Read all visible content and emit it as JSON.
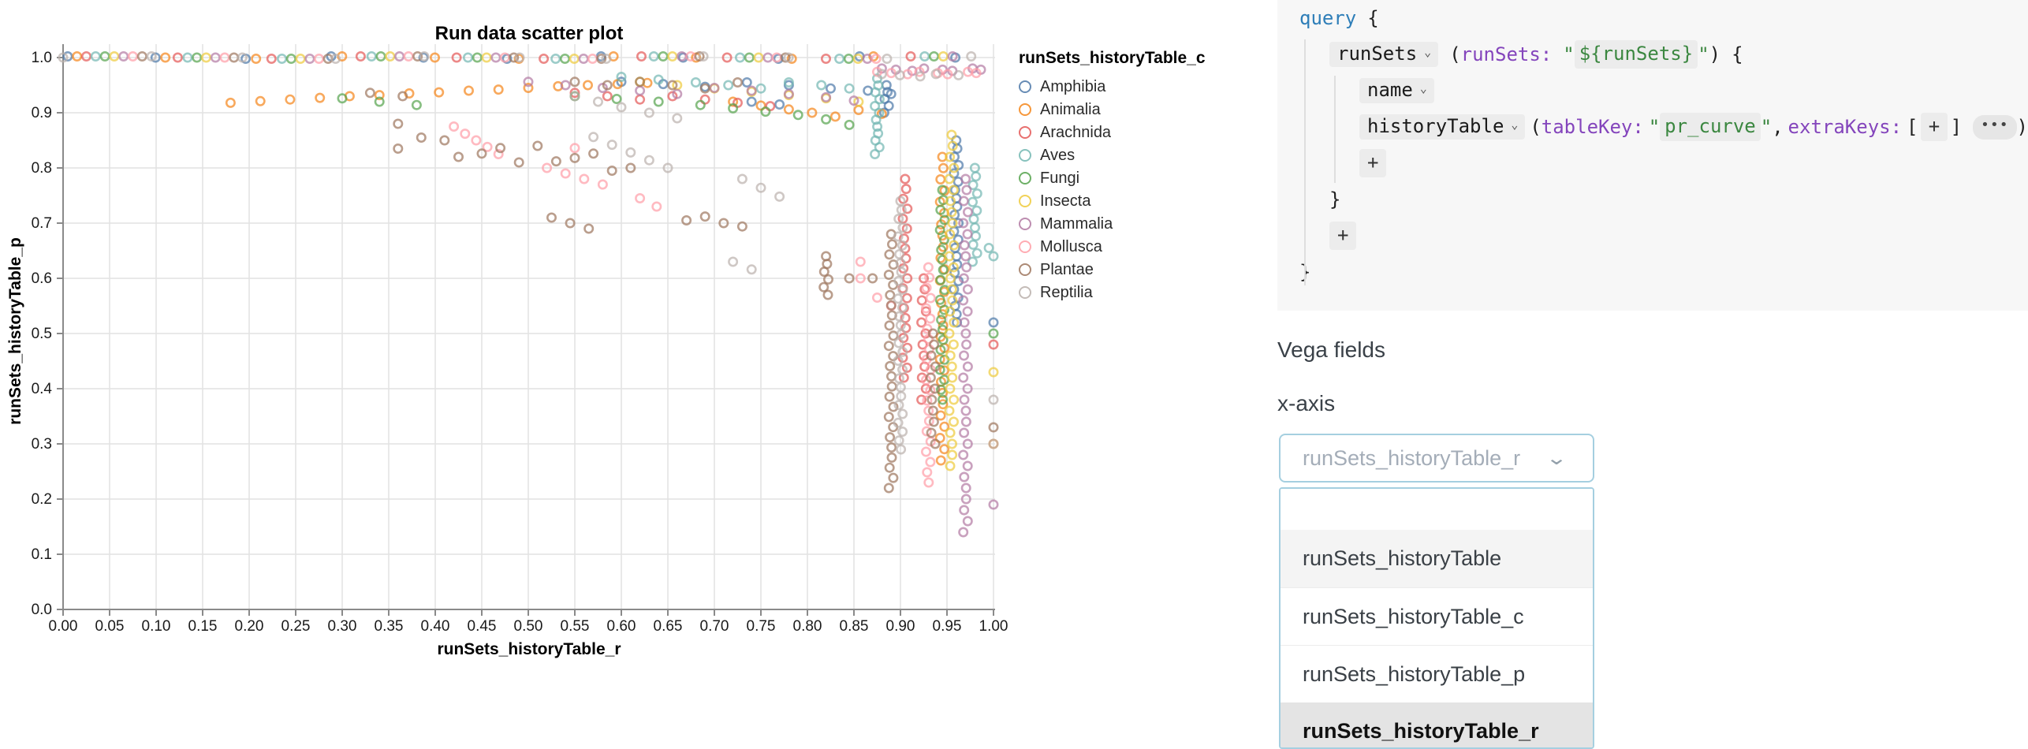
{
  "chart_data": {
    "type": "scatter",
    "title": "Run data scatter plot",
    "xlabel": "runSets_historyTable_r",
    "ylabel": "runSets_historyTable_p",
    "xlim": [
      0.0,
      1.0
    ],
    "ylim": [
      0.0,
      1.0
    ],
    "grid": true,
    "legend_title": "runSets_historyTable_c",
    "legend_position": "right",
    "x_ticks": [
      "0.00",
      "0.05",
      "0.10",
      "0.15",
      "0.20",
      "0.25",
      "0.30",
      "0.35",
      "0.40",
      "0.45",
      "0.50",
      "0.55",
      "0.60",
      "0.65",
      "0.70",
      "0.75",
      "0.80",
      "0.85",
      "0.90",
      "0.95",
      "1.00"
    ],
    "y_ticks": [
      "0.0",
      "0.1",
      "0.2",
      "0.3",
      "0.4",
      "0.5",
      "0.6",
      "0.7",
      "0.8",
      "0.9",
      "1.0"
    ],
    "marker": {
      "shape": "open-circle",
      "radius": 5.2,
      "stroke_width": 2.6,
      "opacity": 0.7
    },
    "series": [
      {
        "name": "Amphibia",
        "color": "#4c78a8",
        "rows": [
          {
            "p": 1.0,
            "r_from": 0.005,
            "r_to": 0.955,
            "n": 11
          }
        ],
        "points": [
          [
            0.6,
            0.956
          ],
          [
            0.645,
            0.952
          ],
          [
            0.69,
            0.947
          ],
          [
            0.735,
            0.955
          ],
          [
            0.78,
            0.95
          ],
          [
            0.825,
            0.944
          ],
          [
            0.865,
            0.94
          ],
          [
            0.89,
            0.934
          ],
          [
            0.74,
            0.92
          ],
          [
            0.77,
            0.915
          ],
          [
            1.0,
            0.52
          ]
        ],
        "streaks": [
          {
            "r": 0.96,
            "p_from": 0.85,
            "p_to": 0.52,
            "n": 23
          },
          {
            "r": 0.885,
            "p_from": 0.95,
            "p_to": 0.9,
            "n": 5
          }
        ]
      },
      {
        "name": "Animalia",
        "color": "#f58518",
        "rows": [
          {
            "p": 1.0,
            "r_from": 0.015,
            "r_to": 0.875,
            "n": 10
          }
        ],
        "points": [
          [
            0.18,
            0.918
          ],
          [
            0.212,
            0.921
          ],
          [
            0.244,
            0.924
          ],
          [
            0.276,
            0.927
          ],
          [
            0.308,
            0.93
          ],
          [
            0.34,
            0.932
          ],
          [
            0.372,
            0.935
          ],
          [
            0.404,
            0.937
          ],
          [
            0.436,
            0.94
          ],
          [
            0.468,
            0.942
          ],
          [
            0.5,
            0.945
          ],
          [
            0.532,
            0.948
          ],
          [
            0.564,
            0.95
          ],
          [
            0.596,
            0.952
          ],
          [
            0.628,
            0.954
          ],
          [
            0.72,
            0.92
          ],
          [
            0.75,
            0.913
          ],
          [
            0.78,
            0.906
          ],
          [
            0.805,
            0.9
          ],
          [
            0.83,
            0.893
          ],
          [
            0.855,
            0.905
          ],
          [
            0.88,
            0.898
          ],
          [
            1.0,
            0.3
          ]
        ],
        "streaks": [
          {
            "r": 0.945,
            "p_from": 0.82,
            "p_to": 0.27,
            "n": 28
          }
        ]
      },
      {
        "name": "Arachnida",
        "color": "#e45756",
        "rows": [
          {
            "p": 1.0,
            "r_from": 0.025,
            "r_to": 0.915,
            "n": 10
          }
        ],
        "points": [
          [
            0.55,
            0.936
          ],
          [
            0.585,
            0.93
          ],
          [
            0.62,
            0.924
          ],
          [
            0.655,
            0.93
          ],
          [
            0.69,
            0.924
          ],
          [
            0.725,
            0.918
          ],
          [
            0.76,
            0.912
          ],
          [
            1.0,
            0.48
          ]
        ],
        "streaks": [
          {
            "r": 0.905,
            "p_from": 0.78,
            "p_to": 0.42,
            "n": 21
          },
          {
            "r": 0.925,
            "p_from": 0.6,
            "p_to": 0.38,
            "n": 12
          }
        ]
      },
      {
        "name": "Aves",
        "color": "#72b7b2",
        "rows": [
          {
            "p": 1.0,
            "r_from": 0.035,
            "r_to": 0.93,
            "n": 10
          }
        ],
        "points": [
          [
            0.6,
            0.965
          ],
          [
            0.64,
            0.96
          ],
          [
            0.68,
            0.955
          ],
          [
            0.715,
            0.95
          ],
          [
            0.75,
            0.944
          ],
          [
            0.78,
            0.955
          ],
          [
            0.815,
            0.95
          ],
          [
            0.845,
            0.944
          ],
          [
            0.995,
            0.655
          ],
          [
            1.0,
            0.64
          ]
        ],
        "streaks": [
          {
            "r": 0.875,
            "p_from": 0.962,
            "p_to": 0.825,
            "n": 12
          },
          {
            "r": 0.98,
            "p_from": 0.8,
            "p_to": 0.63,
            "n": 12
          }
        ]
      },
      {
        "name": "Fungi",
        "color": "#54a24b",
        "rows": [
          {
            "p": 1.0,
            "r_from": 0.045,
            "r_to": 0.94,
            "n": 10
          }
        ],
        "points": [
          [
            0.3,
            0.926
          ],
          [
            0.34,
            0.92
          ],
          [
            0.38,
            0.914
          ],
          [
            0.55,
            0.93
          ],
          [
            0.595,
            0.925
          ],
          [
            0.64,
            0.92
          ],
          [
            0.685,
            0.914
          ],
          [
            0.72,
            0.908
          ],
          [
            0.755,
            0.902
          ],
          [
            0.79,
            0.896
          ],
          [
            0.82,
            0.888
          ],
          [
            0.845,
            0.878
          ],
          [
            1.0,
            0.5
          ]
        ],
        "streaks": [
          {
            "r": 0.945,
            "p_from": 0.76,
            "p_to": 0.38,
            "n": 22
          }
        ]
      },
      {
        "name": "Insecta",
        "color": "#eeca3b",
        "rows": [
          {
            "p": 1.0,
            "r_from": 0.055,
            "r_to": 0.95,
            "n": 10
          }
        ],
        "points": [
          [
            0.62,
            0.956
          ],
          [
            0.66,
            0.95
          ],
          [
            0.7,
            0.944
          ],
          [
            0.74,
            0.938
          ],
          [
            0.78,
            0.932
          ],
          [
            0.82,
            0.926
          ],
          [
            0.855,
            0.92
          ],
          [
            1.0,
            0.43
          ]
        ],
        "streaks": [
          {
            "r": 0.955,
            "p_from": 0.86,
            "p_to": 0.26,
            "n": 31
          }
        ]
      },
      {
        "name": "Mammalia",
        "color": "#b279a2",
        "rows": [
          {
            "p": 1.0,
            "r_from": 0.065,
            "r_to": 0.96,
            "n": 10
          },
          {
            "p": 0.978,
            "r_from": 0.88,
            "r_to": 0.99,
            "n": 8
          }
        ],
        "points": [
          [
            0.5,
            0.956
          ],
          [
            0.54,
            0.95
          ],
          [
            0.58,
            0.945
          ],
          [
            0.62,
            0.94
          ],
          [
            0.66,
            0.934
          ],
          [
            0.7,
            0.945
          ],
          [
            0.74,
            0.94
          ],
          [
            0.78,
            0.934
          ],
          [
            0.82,
            0.928
          ],
          [
            0.85,
            0.922
          ],
          [
            1.0,
            0.19
          ]
        ],
        "streaks": [
          {
            "r": 0.97,
            "p_from": 0.78,
            "p_to": 0.14,
            "n": 33
          }
        ]
      },
      {
        "name": "Mollusca",
        "color": "#ff9da6",
        "rows": [
          {
            "p": 1.0,
            "r_from": 0.075,
            "r_to": 0.87,
            "n": 9
          },
          {
            "p": 0.972,
            "r_from": 0.875,
            "r_to": 0.985,
            "n": 8
          }
        ],
        "points": [
          [
            0.42,
            0.875
          ],
          [
            0.432,
            0.862
          ],
          [
            0.444,
            0.85
          ],
          [
            0.456,
            0.838
          ],
          [
            0.468,
            0.825
          ],
          [
            0.52,
            0.8
          ],
          [
            0.54,
            0.79
          ],
          [
            0.56,
            0.78
          ],
          [
            0.58,
            0.77
          ],
          [
            0.55,
            0.836
          ],
          [
            0.62,
            0.745
          ],
          [
            0.638,
            0.73
          ],
          [
            0.857,
            0.63
          ],
          [
            0.857,
            0.6
          ],
          [
            0.875,
            0.565
          ],
          [
            0.89,
            0.55
          ]
        ],
        "streaks": [
          {
            "r": 0.93,
            "p_from": 0.62,
            "p_to": 0.23,
            "n": 22
          }
        ]
      },
      {
        "name": "Plantae",
        "color": "#9d755d",
        "rows": [
          {
            "p": 1.0,
            "r_from": 0.085,
            "r_to": 0.78,
            "n": 8
          }
        ],
        "points": [
          [
            0.33,
            0.936
          ],
          [
            0.365,
            0.93
          ],
          [
            0.55,
            0.956
          ],
          [
            0.585,
            0.95
          ],
          [
            0.62,
            0.956
          ],
          [
            0.655,
            0.95
          ],
          [
            0.69,
            0.944
          ],
          [
            0.725,
            0.955
          ],
          [
            0.36,
            0.88
          ],
          [
            0.36,
            0.835
          ],
          [
            0.385,
            0.855
          ],
          [
            0.41,
            0.85
          ],
          [
            0.425,
            0.82
          ],
          [
            0.45,
            0.826
          ],
          [
            0.47,
            0.836
          ],
          [
            0.49,
            0.81
          ],
          [
            0.51,
            0.84
          ],
          [
            0.53,
            0.812
          ],
          [
            0.55,
            0.818
          ],
          [
            0.57,
            0.826
          ],
          [
            0.59,
            0.795
          ],
          [
            0.61,
            0.8
          ],
          [
            0.525,
            0.71
          ],
          [
            0.545,
            0.7
          ],
          [
            0.565,
            0.69
          ],
          [
            0.67,
            0.705
          ],
          [
            0.69,
            0.712
          ],
          [
            0.71,
            0.7
          ],
          [
            0.73,
            0.694
          ],
          [
            0.845,
            0.6
          ],
          [
            0.87,
            0.6
          ],
          [
            1.0,
            0.33
          ]
        ],
        "streaks": [
          {
            "r": 0.82,
            "p_from": 0.64,
            "p_to": 0.57,
            "n": 6
          },
          {
            "r": 0.89,
            "p_from": 0.68,
            "p_to": 0.22,
            "n": 26
          },
          {
            "r": 0.935,
            "p_from": 0.5,
            "p_to": 0.3,
            "n": 11
          }
        ]
      },
      {
        "name": "Reptilia",
        "color": "#bab0ac",
        "rows": [
          {
            "p": 1.0,
            "r_from": 0.095,
            "r_to": 0.98,
            "n": 10
          },
          {
            "p": 0.968,
            "r_from": 0.88,
            "r_to": 0.96,
            "n": 5
          }
        ],
        "points": [
          [
            0.0,
            1.0
          ],
          [
            0.55,
            0.93
          ],
          [
            0.575,
            0.92
          ],
          [
            0.6,
            0.91
          ],
          [
            0.63,
            0.9
          ],
          [
            0.66,
            0.89
          ],
          [
            0.57,
            0.856
          ],
          [
            0.59,
            0.842
          ],
          [
            0.61,
            0.828
          ],
          [
            0.63,
            0.814
          ],
          [
            0.65,
            0.8
          ],
          [
            0.73,
            0.78
          ],
          [
            0.75,
            0.764
          ],
          [
            0.77,
            0.748
          ],
          [
            0.72,
            0.63
          ],
          [
            0.74,
            0.616
          ],
          [
            1.0,
            0.38
          ],
          [
            1.0,
            0.3
          ]
        ],
        "streaks": [
          {
            "r": 0.9,
            "p_from": 0.74,
            "p_to": 0.29,
            "n": 29
          }
        ]
      }
    ]
  },
  "query_panel": {
    "keyword": "query",
    "fields": {
      "runsets": "runSets",
      "name": "name",
      "history_table": "historyTable"
    },
    "args": {
      "runsets_name": "runSets:",
      "runsets_value": "${runSets}",
      "tablekey_name": "tableKey:",
      "tablekey_value": "pr_curve",
      "extrakeys_name": "extraKeys:"
    },
    "punct": {
      "brace_open": "{",
      "brace_close": "}",
      "paren_open": "(",
      "paren_close": ")",
      "bracket_open": "[",
      "bracket_close": "]",
      "comma": ",",
      "quote": "\""
    },
    "add_button": "+",
    "more_button": "•••"
  },
  "vega_fields": {
    "section_label": "Vega fields",
    "x_axis_label": "x-axis",
    "select_value": "runSets_historyTable_r",
    "options": [
      "runSets_historyTable",
      "runSets_historyTable_c",
      "runSets_historyTable_p",
      "runSets_historyTable_r"
    ],
    "highlighted_option": "runSets_historyTable",
    "selected_option": "runSets_historyTable_r"
  },
  "icons": {
    "caret_down": "⌄",
    "select_chevron": "⌄"
  },
  "colors": {
    "accent_border": "#a5cfe0",
    "panel_bg": "#f7f7f7",
    "code_keyword": "#2e7eb8",
    "code_arg": "#8445bc",
    "code_string": "#3b8740",
    "chip_bg": "#ececec",
    "grid_line": "#e2e2e2",
    "axis_line": "#8a8a8a"
  }
}
